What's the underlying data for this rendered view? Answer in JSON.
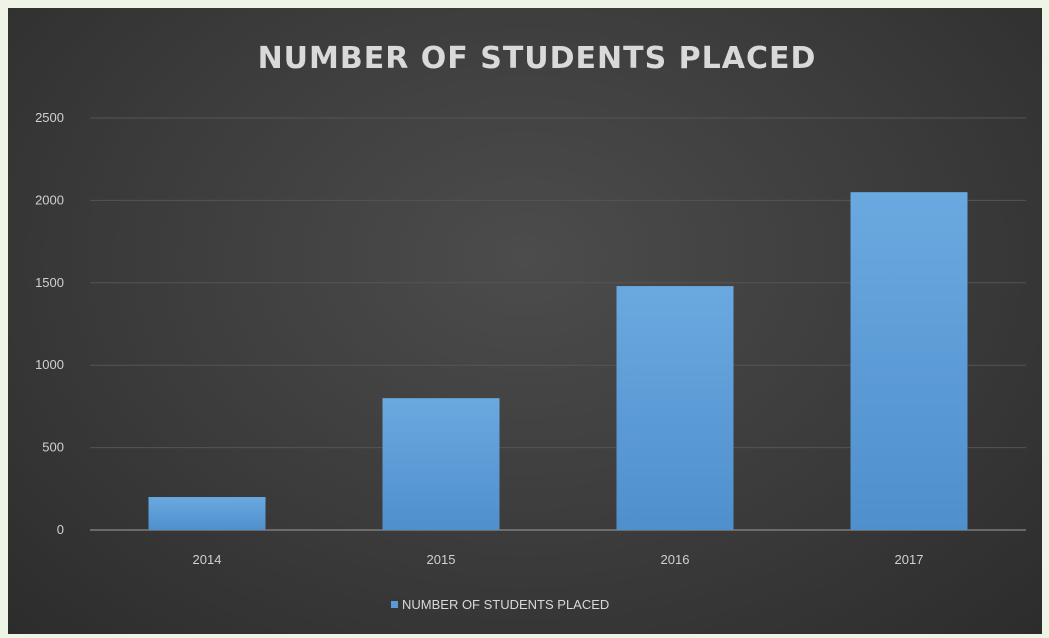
{
  "chart_data": {
    "type": "bar",
    "title": "NUMBER OF STUDENTS PLACED",
    "categories": [
      "2014",
      "2015",
      "2016",
      "2017"
    ],
    "series": [
      {
        "name": "NUMBER OF STUDENTS PLACED",
        "values": [
          200,
          800,
          1480,
          2050
        ],
        "color": "#5b9bd5"
      }
    ],
    "ylim": [
      0,
      2500
    ],
    "yticks": [
      0,
      500,
      1000,
      1500,
      2000,
      2500
    ],
    "grid": true,
    "legend_position": "bottom",
    "xlabel": "",
    "ylabel": ""
  }
}
